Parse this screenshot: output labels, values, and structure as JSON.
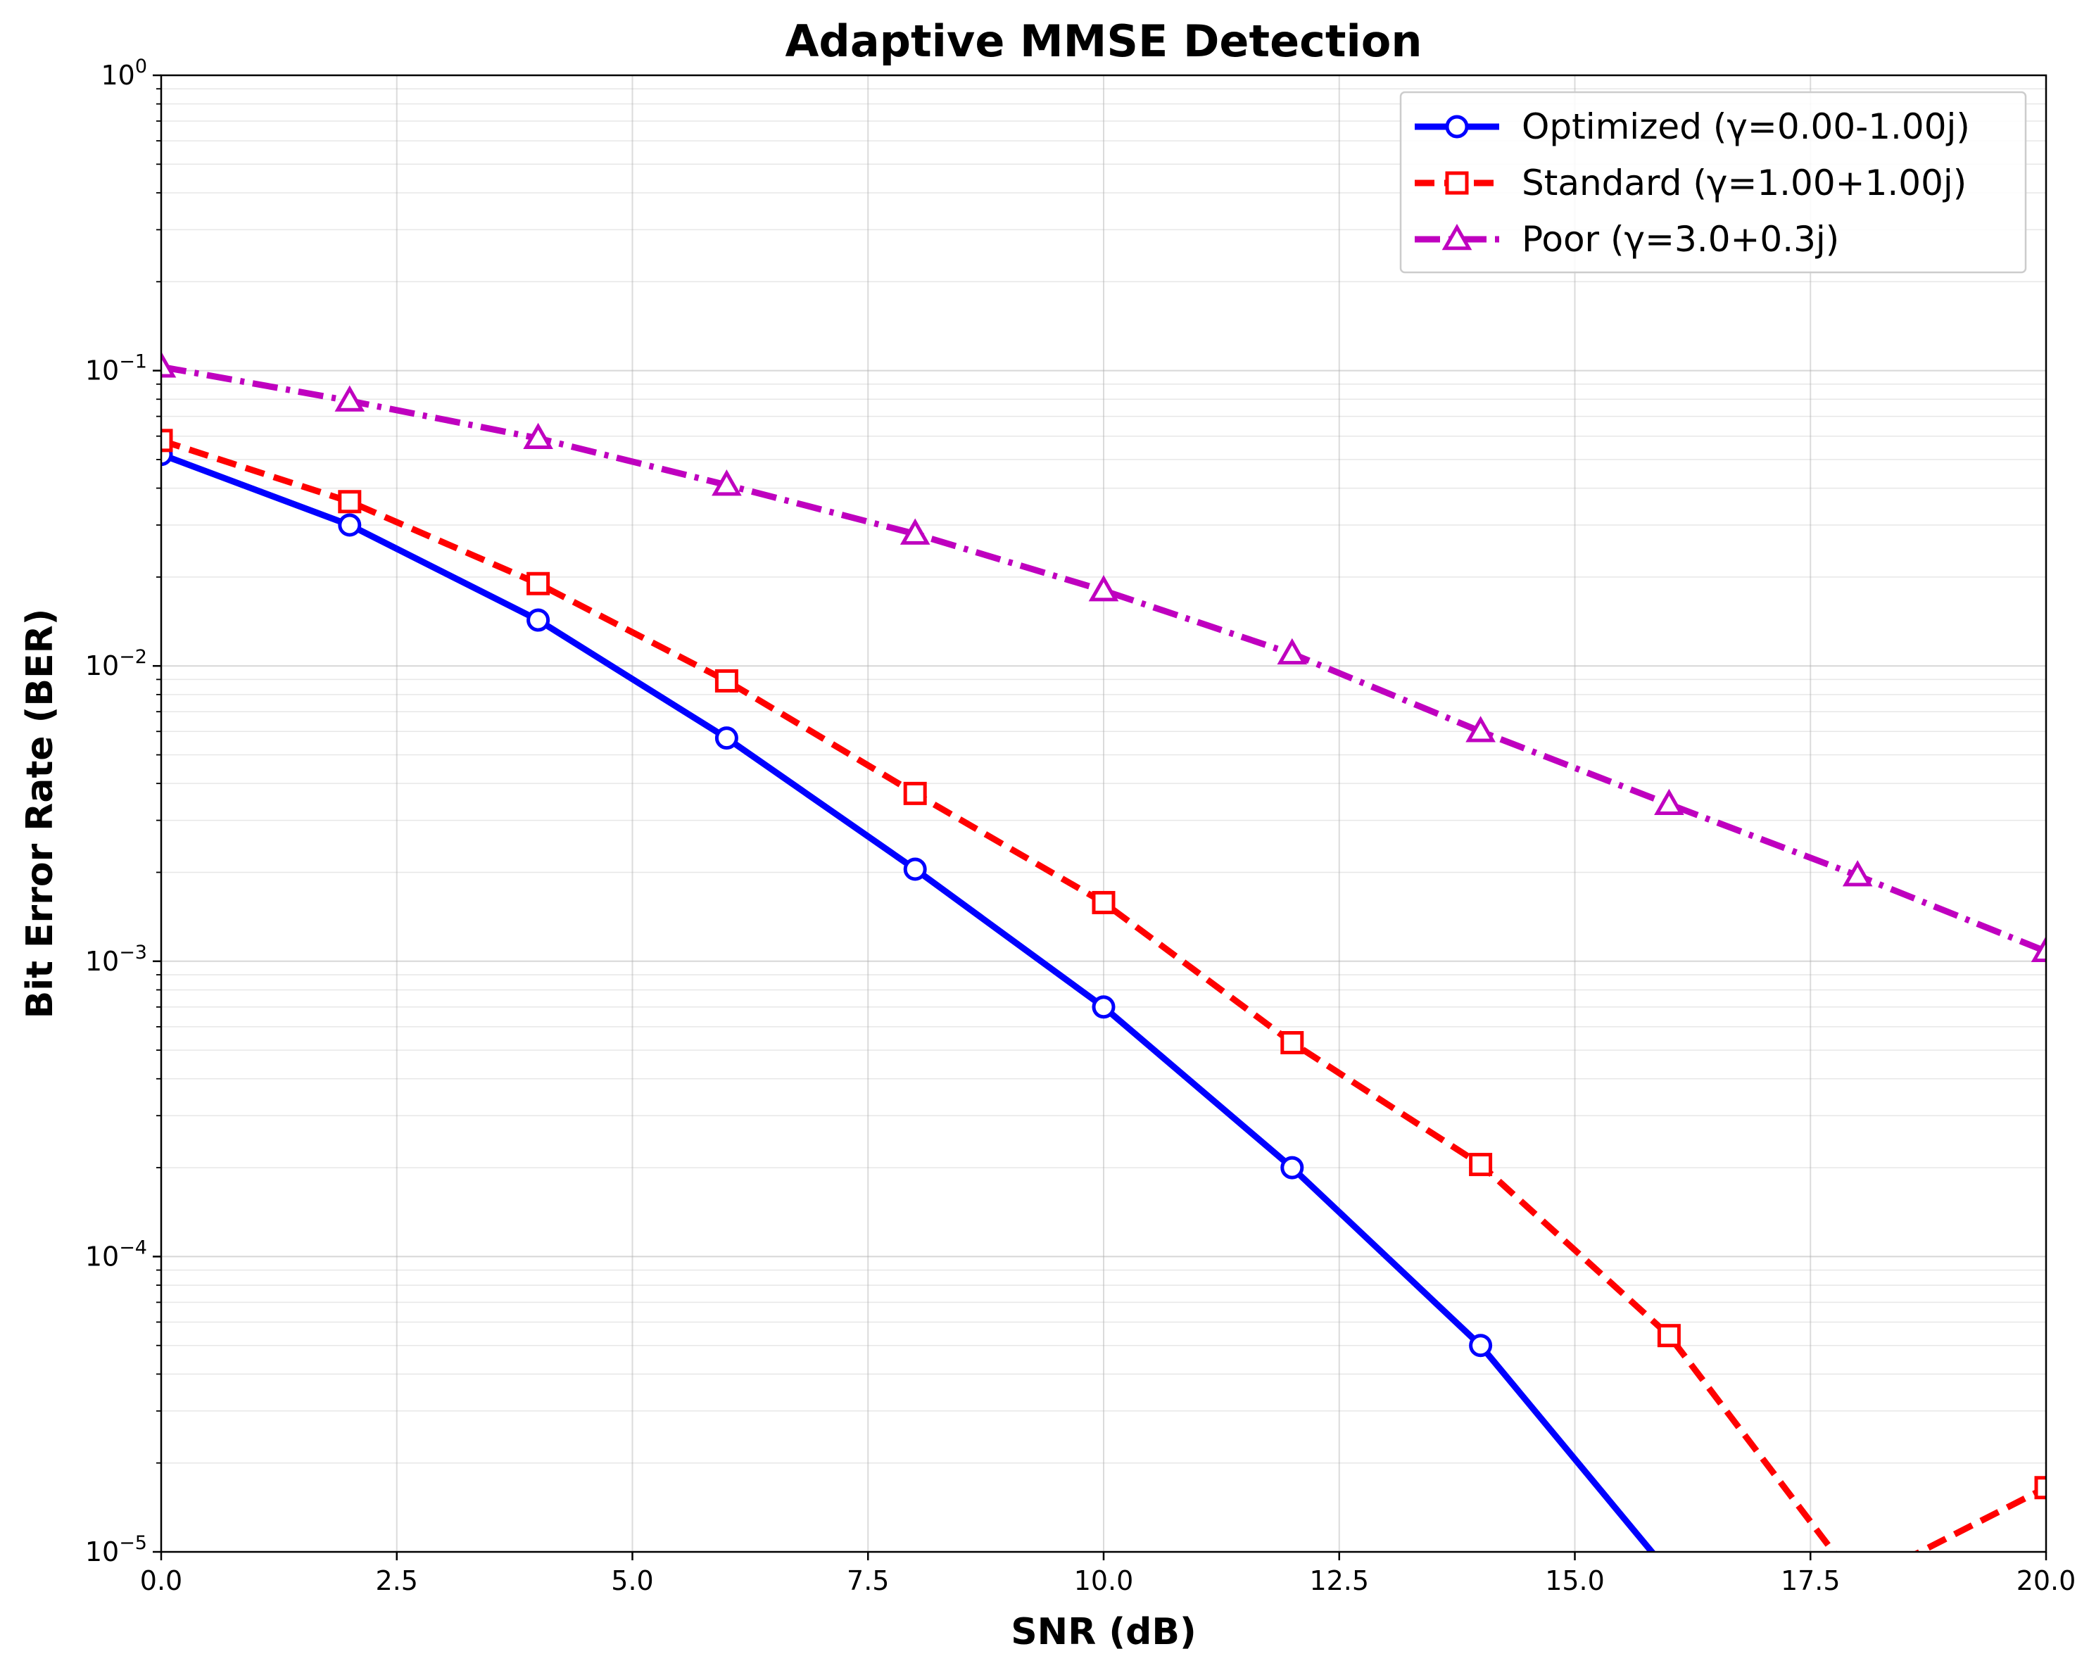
{
  "chart_data": {
    "type": "line",
    "title": "Adaptive MMSE Detection",
    "xlabel": "SNR (dB)",
    "ylabel": "Bit Error Rate (BER)",
    "xlim": [
      0,
      20
    ],
    "ylim": [
      1e-05,
      1
    ],
    "yscale": "log",
    "grid": true,
    "legend_position": "top-right",
    "x_ticks": [
      "0.0",
      "2.5",
      "5.0",
      "7.5",
      "10.0",
      "12.5",
      "15.0",
      "17.5",
      "20.0"
    ],
    "y_ticks": [
      {
        "base": "10",
        "exp": "−5"
      },
      {
        "base": "10",
        "exp": "−4"
      },
      {
        "base": "10",
        "exp": "−3"
      },
      {
        "base": "10",
        "exp": "−2"
      },
      {
        "base": "10",
        "exp": "−1"
      },
      {
        "base": "10",
        "exp": "0"
      }
    ],
    "x": [
      0,
      2,
      4,
      6,
      8,
      10,
      12,
      14,
      16,
      18,
      20
    ],
    "series": [
      {
        "name": "Optimized (γ=0.00-1.00j)",
        "color": "#0000ff",
        "line_style": "solid",
        "marker": "circle",
        "values": [
          0.052,
          0.03,
          0.0143,
          0.0057,
          0.00205,
          0.0007,
          0.0002,
          5e-05,
          8.5e-06,
          null,
          null
        ]
      },
      {
        "name": "Standard (γ=1.00+1.00j)",
        "color": "#ff0000",
        "line_style": "dashed",
        "marker": "square",
        "values": [
          0.058,
          0.036,
          0.019,
          0.0089,
          0.0037,
          0.00158,
          0.00053,
          0.000205,
          5.4e-05,
          7.8e-06,
          1.65e-05
        ]
      },
      {
        "name": "Poor (γ=3.0+0.3j)",
        "color": "#bf00bf",
        "line_style": "dashdot",
        "marker": "triangle",
        "values": [
          0.103,
          0.079,
          0.059,
          0.041,
          0.028,
          0.018,
          0.011,
          0.006,
          0.0034,
          0.00195,
          0.00108
        ]
      }
    ]
  }
}
